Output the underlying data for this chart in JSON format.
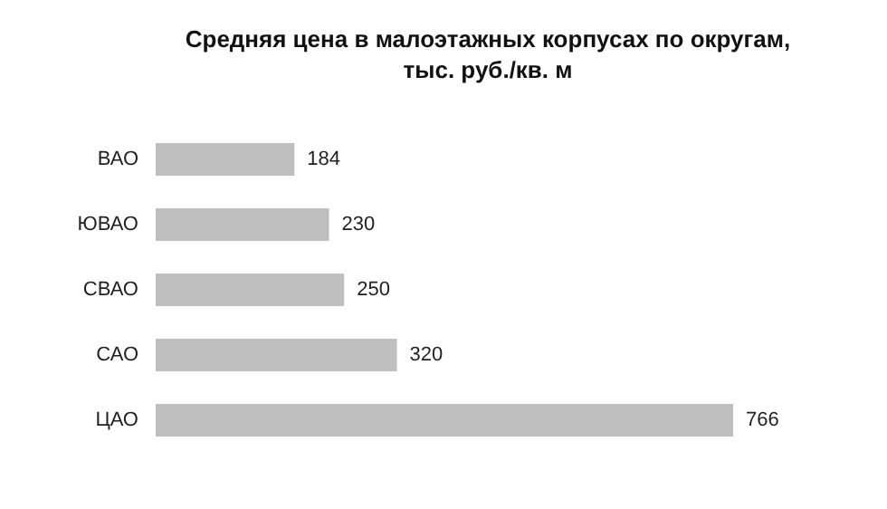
{
  "chart_data": {
    "type": "bar",
    "orientation": "horizontal",
    "title": "Средняя цена в малоэтажных корпусах по округам,\nтыс. руб./кв. м",
    "categories": [
      "ВАО",
      "ЮВАО",
      "СВАО",
      "САО",
      "ЦАО"
    ],
    "values": [
      184,
      230,
      250,
      320,
      766
    ],
    "color": "#bfbfbf",
    "data_labels": true
  }
}
